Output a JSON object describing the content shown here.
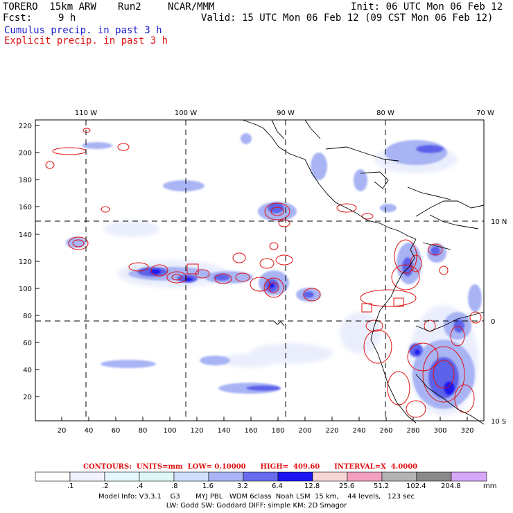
{
  "header": {
    "model": "TORERO  15km ARW",
    "run": "Run2",
    "org": "NCAR/MMM",
    "init": "Init: 06 UTC Mon 06 Feb 12",
    "fcst_label": "Fcst:",
    "fcst_value": "9 h",
    "valid": "Valid: 15 UTC Mon 06 Feb 12 (09 CST Mon 06 Feb 12)",
    "line_cumulus": "Cumulus precip. in past 3 h",
    "line_explicit": "Explicit precip. in past 3 h"
  },
  "map": {
    "lon_labels": [
      "110 W",
      "100 W",
      "90 W",
      "80 W",
      "70 W"
    ],
    "lat_labels": [
      "10 N",
      "0",
      "10 S"
    ],
    "y_ticks": [
      "220",
      "200",
      "180",
      "160",
      "140",
      "120",
      "100",
      "80",
      "60",
      "40",
      "20"
    ],
    "x_ticks": [
      "20",
      "40",
      "60",
      "80",
      "100",
      "120",
      "140",
      "160",
      "180",
      "200",
      "220",
      "240",
      "260",
      "280",
      "300",
      "320"
    ],
    "colors": {
      "grid": "#000000",
      "coast": "#000000",
      "contour": "#e01010"
    }
  },
  "legend": {
    "contours_text": "CONTOURS:  UNITS=mm  LOW= 0.10000      HIGH=  409.60      INTERVAL=X  4.0000",
    "labels": [
      ".1",
      ".2",
      ".4",
      ".8",
      "1.6",
      "3.2",
      "6.4",
      "12.8",
      "25.6",
      "51.2",
      "102.4",
      "204.8"
    ],
    "unit": "mm",
    "colors": [
      "#ffffff",
      "#f2f2ff",
      "#e6f8ff",
      "#e0f7f7",
      "#cfe0ff",
      "#a8b4f4",
      "#6a6cee",
      "#1a14f0",
      "#f7d6d6",
      "#f4a0c0",
      "#b4b4b4",
      "#8a8a8a",
      "#d8a8f8"
    ]
  },
  "footer": {
    "line1": "Model Info: V3.3.1    G3       MYJ PBL   WDM 6class  Noah LSM  15 km,    44 levels,   123 sec",
    "line2": "LW: Godd SW: Goddard DIFF: simple KM: 2D Smagor"
  }
}
